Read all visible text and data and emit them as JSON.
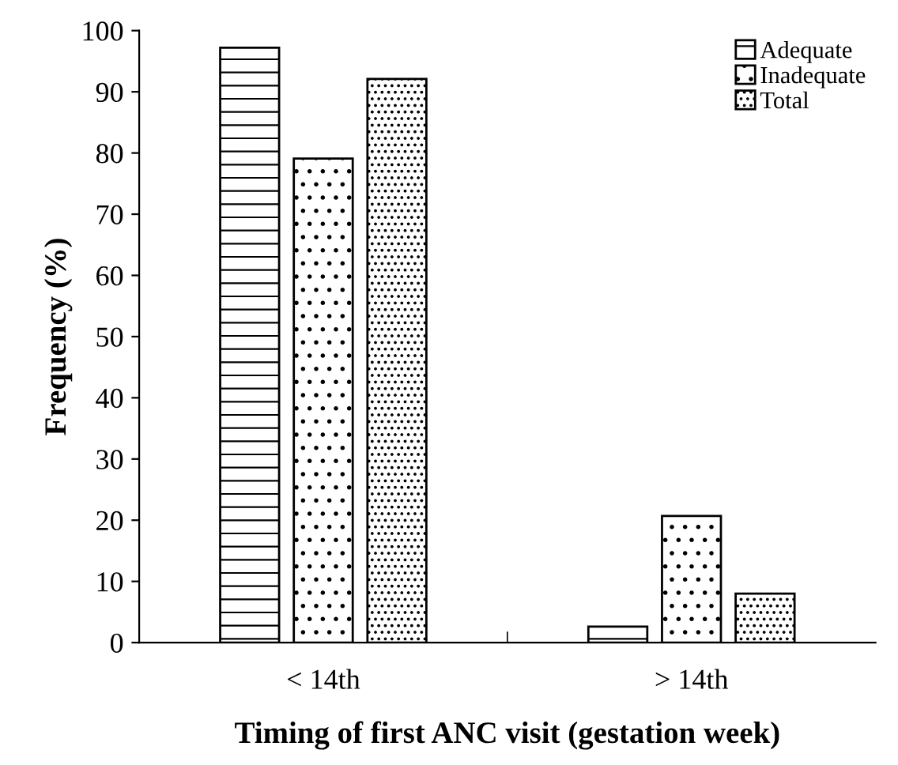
{
  "chart_data": {
    "type": "bar",
    "xlabel": "Timing of first ANC visit (gestation week)",
    "ylabel": "Frequency (%)",
    "categories": [
      "< 14th",
      "> 14th"
    ],
    "series": [
      {
        "name": "Adequate",
        "color": "#000000",
        "values": [
          97.2,
          2.6
        ]
      },
      {
        "name": "Inadequate",
        "color": "#000000",
        "values": [
          79.1,
          20.7
        ]
      },
      {
        "name": "Total",
        "color": "#000000",
        "values": [
          92.1,
          8.0
        ]
      }
    ],
    "ylim": [
      0,
      100
    ],
    "yticks": [
      0,
      10,
      20,
      30,
      40,
      50,
      60,
      70,
      80,
      90,
      100
    ],
    "grid": false,
    "legend": "top right"
  }
}
